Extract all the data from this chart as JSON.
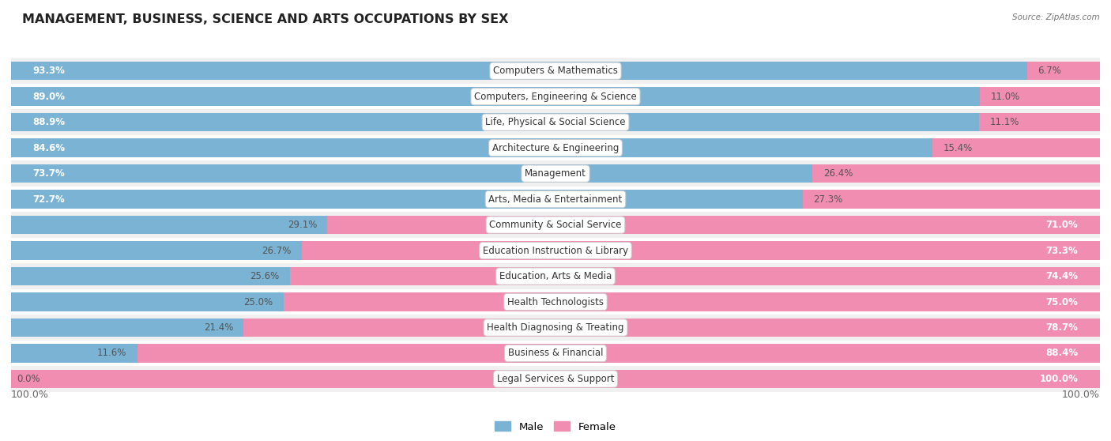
{
  "title": "MANAGEMENT, BUSINESS, SCIENCE AND ARTS OCCUPATIONS BY SEX",
  "source": "Source: ZipAtlas.com",
  "categories": [
    "Computers & Mathematics",
    "Computers, Engineering & Science",
    "Life, Physical & Social Science",
    "Architecture & Engineering",
    "Management",
    "Arts, Media & Entertainment",
    "Community & Social Service",
    "Education Instruction & Library",
    "Education, Arts & Media",
    "Health Technologists",
    "Health Diagnosing & Treating",
    "Business & Financial",
    "Legal Services & Support"
  ],
  "male": [
    93.3,
    89.0,
    88.9,
    84.6,
    73.7,
    72.7,
    29.1,
    26.7,
    25.6,
    25.0,
    21.4,
    11.6,
    0.0
  ],
  "female": [
    6.7,
    11.0,
    11.1,
    15.4,
    26.4,
    27.3,
    71.0,
    73.3,
    74.4,
    75.0,
    78.7,
    88.4,
    100.0
  ],
  "male_color": "#7ab3d4",
  "female_color": "#f08db0",
  "row_bg_light": "#f0f0f0",
  "row_bg_white": "#ffffff",
  "title_fontsize": 11.5,
  "label_fontsize": 8.5,
  "tick_fontsize": 9,
  "legend_fontsize": 9.5
}
